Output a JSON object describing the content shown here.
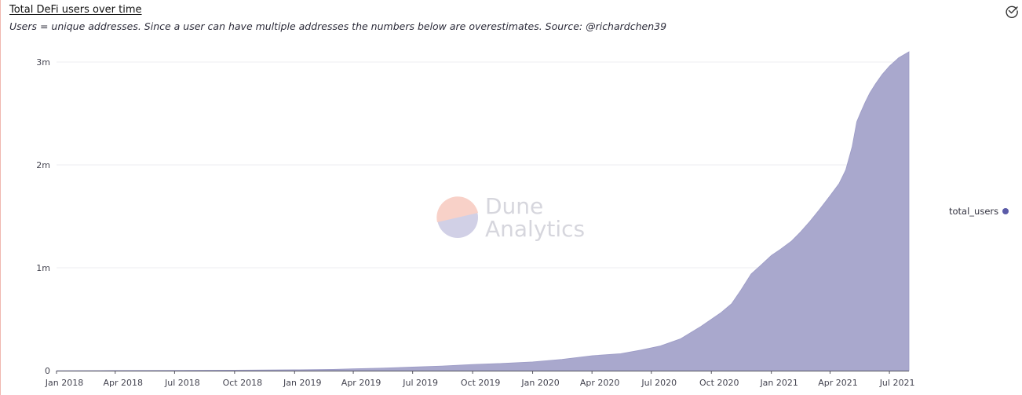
{
  "header": {
    "title": "Total DeFi users over time",
    "subtitle": "Users = unique addresses. Since a user can have multiple addresses the numbers below are overestimates. Source: @richardchen39"
  },
  "watermark": {
    "line1": "Dune",
    "line2": "Analytics"
  },
  "legend": {
    "label": "total_users",
    "color": "#5b5ba8"
  },
  "colors": {
    "area_fill": "#a9a8cd",
    "area_stroke": "#9c9bc6",
    "grid": "#ececf0",
    "axis_text": "#444450",
    "logo_peach": "#f7c9bf",
    "logo_lavender": "#c9c8e2"
  },
  "chart_data": {
    "type": "area",
    "title": "Total DeFi users over time",
    "xlabel": "",
    "ylabel": "",
    "x_ticks": [
      "Jan 2018",
      "Apr 2018",
      "Jul 2018",
      "Oct 2018",
      "Jan 2019",
      "Apr 2019",
      "Jul 2019",
      "Oct 2019",
      "Jan 2020",
      "Apr 2020",
      "Jul 2020",
      "Oct 2020",
      "Jan 2021",
      "Apr 2021",
      "Jul 2021"
    ],
    "y_ticks": [
      {
        "value": 0,
        "label": "0"
      },
      {
        "value": 1000000,
        "label": "1m"
      },
      {
        "value": 2000000,
        "label": "2m"
      },
      {
        "value": 3000000,
        "label": "3m"
      }
    ],
    "xlim": [
      "2018-01-01",
      "2021-07-31"
    ],
    "ylim": [
      0,
      3000000
    ],
    "grid": true,
    "legend_position": "right",
    "series": [
      {
        "name": "total_users",
        "points": [
          [
            "2018-01-01",
            0
          ],
          [
            "2018-04-01",
            1500
          ],
          [
            "2018-07-01",
            3000
          ],
          [
            "2018-10-01",
            5000
          ],
          [
            "2019-01-01",
            8000
          ],
          [
            "2019-03-01",
            12000
          ],
          [
            "2019-04-01",
            18000
          ],
          [
            "2019-05-15",
            25000
          ],
          [
            "2019-07-01",
            35000
          ],
          [
            "2019-08-15",
            45000
          ],
          [
            "2019-10-01",
            60000
          ],
          [
            "2019-11-15",
            70000
          ],
          [
            "2020-01-01",
            85000
          ],
          [
            "2020-02-15",
            110000
          ],
          [
            "2020-04-01",
            145000
          ],
          [
            "2020-05-15",
            165000
          ],
          [
            "2020-06-15",
            200000
          ],
          [
            "2020-07-15",
            240000
          ],
          [
            "2020-08-15",
            310000
          ],
          [
            "2020-09-15",
            430000
          ],
          [
            "2020-10-15",
            560000
          ],
          [
            "2020-11-01",
            650000
          ],
          [
            "2020-11-15",
            780000
          ],
          [
            "2020-12-01",
            940000
          ],
          [
            "2020-12-15",
            1020000
          ],
          [
            "2021-01-01",
            1120000
          ],
          [
            "2021-01-15",
            1180000
          ],
          [
            "2021-02-01",
            1260000
          ],
          [
            "2021-02-15",
            1350000
          ],
          [
            "2021-03-01",
            1450000
          ],
          [
            "2021-03-15",
            1560000
          ],
          [
            "2021-04-01",
            1700000
          ],
          [
            "2021-04-15",
            1820000
          ],
          [
            "2021-04-25",
            1950000
          ],
          [
            "2021-05-05",
            2180000
          ],
          [
            "2021-05-12",
            2420000
          ],
          [
            "2021-05-18",
            2510000
          ],
          [
            "2021-05-25",
            2610000
          ],
          [
            "2021-06-01",
            2700000
          ],
          [
            "2021-06-10",
            2790000
          ],
          [
            "2021-06-20",
            2880000
          ],
          [
            "2021-07-01",
            2960000
          ],
          [
            "2021-07-15",
            3040000
          ],
          [
            "2021-07-31",
            3100000
          ]
        ]
      }
    ]
  }
}
